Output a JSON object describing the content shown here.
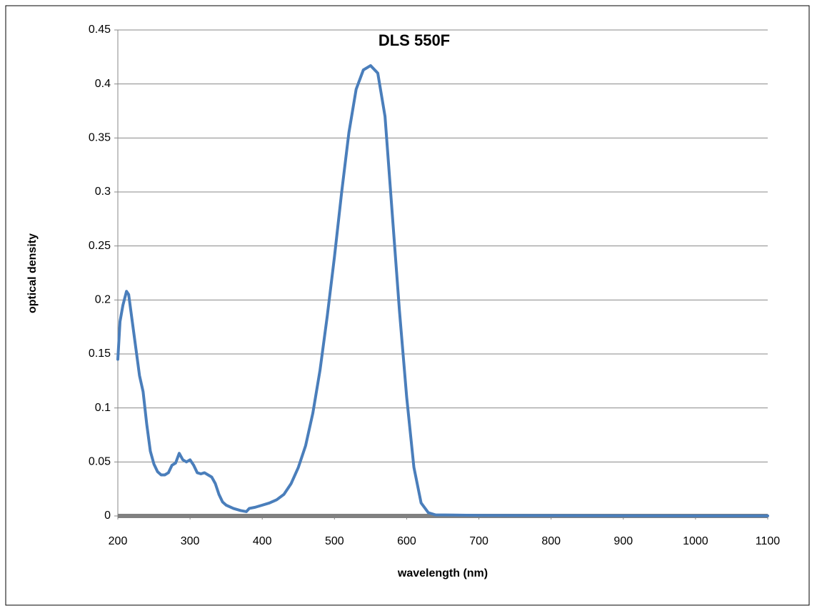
{
  "chart_data": {
    "type": "line",
    "title": "DLS 550F",
    "xlabel": "wavelength (nm)",
    "ylabel": "optical density",
    "xlim": [
      200,
      1100
    ],
    "xticks": [
      200,
      300,
      400,
      500,
      600,
      700,
      800,
      900,
      1000,
      1100
    ],
    "ylim": [
      0,
      0.45
    ],
    "yticks": [
      0,
      0.05,
      0.1,
      0.15,
      0.2,
      0.25,
      0.3,
      0.35,
      0.4,
      0.45
    ],
    "grid": true,
    "series": [
      {
        "color": "#4a7ebb",
        "x": [
          200,
          203,
          207,
          212,
          215,
          220,
          225,
          230,
          235,
          240,
          245,
          250,
          255,
          260,
          265,
          270,
          275,
          280,
          285,
          290,
          295,
          300,
          305,
          310,
          315,
          320,
          325,
          330,
          335,
          340,
          345,
          350,
          360,
          370,
          378,
          382,
          390,
          400,
          410,
          420,
          430,
          440,
          450,
          460,
          470,
          480,
          490,
          500,
          510,
          520,
          530,
          540,
          550,
          560,
          570,
          580,
          590,
          600,
          610,
          620,
          630,
          640,
          700,
          800,
          900,
          1000,
          1100
        ],
        "values": [
          0.145,
          0.18,
          0.195,
          0.208,
          0.205,
          0.18,
          0.155,
          0.13,
          0.115,
          0.085,
          0.06,
          0.048,
          0.041,
          0.038,
          0.038,
          0.04,
          0.047,
          0.049,
          0.058,
          0.052,
          0.05,
          0.052,
          0.047,
          0.04,
          0.039,
          0.04,
          0.038,
          0.036,
          0.03,
          0.02,
          0.013,
          0.01,
          0.007,
          0.005,
          0.004,
          0.007,
          0.008,
          0.01,
          0.012,
          0.015,
          0.02,
          0.03,
          0.045,
          0.065,
          0.095,
          0.135,
          0.185,
          0.24,
          0.3,
          0.355,
          0.395,
          0.413,
          0.417,
          0.41,
          0.37,
          0.28,
          0.19,
          0.11,
          0.045,
          0.012,
          0.003,
          0.001,
          0.0005,
          0.0003,
          0.0002,
          0.0001,
          0.0001
        ]
      }
    ]
  }
}
